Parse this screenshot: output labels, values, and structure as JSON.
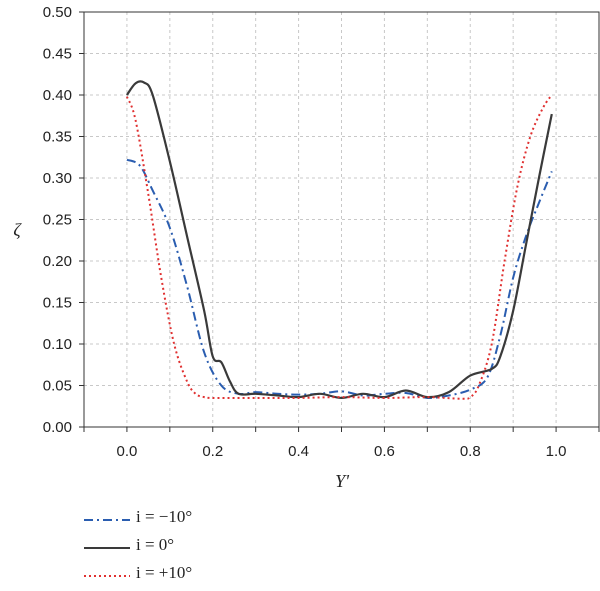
{
  "chart_data": {
    "type": "line",
    "xlabel": "Y'",
    "ylabel": "ζ",
    "xlim": [
      -0.1,
      1.1
    ],
    "ylim": [
      0.0,
      0.5
    ],
    "xticks": [
      "0.0",
      "0.2",
      "0.4",
      "0.6",
      "0.8",
      "1.0"
    ],
    "yticks": [
      "0.00",
      "0.05",
      "0.10",
      "0.15",
      "0.20",
      "0.25",
      "0.30",
      "0.35",
      "0.40",
      "0.45",
      "0.50"
    ],
    "grid": true,
    "legend_position": "bottom-left, below plot",
    "series": [
      {
        "name": "i = −10°",
        "color": "#2a5db0",
        "dash": "dashdot",
        "x": [
          0.0,
          0.03,
          0.06,
          0.1,
          0.14,
          0.18,
          0.22,
          0.26,
          0.3,
          0.35,
          0.4,
          0.45,
          0.5,
          0.55,
          0.6,
          0.65,
          0.7,
          0.75,
          0.8,
          0.84,
          0.87,
          0.9,
          0.93,
          0.96,
          0.99
        ],
        "y": [
          0.322,
          0.315,
          0.285,
          0.24,
          0.17,
          0.09,
          0.05,
          0.04,
          0.042,
          0.04,
          0.039,
          0.04,
          0.043,
          0.038,
          0.04,
          0.041,
          0.035,
          0.038,
          0.045,
          0.06,
          0.11,
          0.18,
          0.23,
          0.27,
          0.308
        ]
      },
      {
        "name": "i = 0°",
        "color": "#3a3a3a",
        "dash": "solid",
        "x": [
          0.0,
          0.02,
          0.04,
          0.06,
          0.1,
          0.14,
          0.18,
          0.2,
          0.22,
          0.24,
          0.26,
          0.3,
          0.35,
          0.4,
          0.45,
          0.5,
          0.55,
          0.6,
          0.65,
          0.7,
          0.75,
          0.8,
          0.85,
          0.87,
          0.9,
          0.93,
          0.96,
          0.99
        ],
        "y": [
          0.4,
          0.414,
          0.415,
          0.4,
          0.32,
          0.23,
          0.14,
          0.085,
          0.078,
          0.055,
          0.04,
          0.04,
          0.038,
          0.036,
          0.04,
          0.035,
          0.04,
          0.036,
          0.044,
          0.036,
          0.042,
          0.062,
          0.07,
          0.085,
          0.14,
          0.22,
          0.3,
          0.377
        ]
      },
      {
        "name": "i = +10°",
        "color": "#e03030",
        "dash": "dotted",
        "x": [
          0.0,
          0.02,
          0.05,
          0.08,
          0.11,
          0.14,
          0.16,
          0.18,
          0.2,
          0.3,
          0.4,
          0.5,
          0.6,
          0.7,
          0.78,
          0.8,
          0.82,
          0.85,
          0.88,
          0.91,
          0.94,
          0.97,
          0.99
        ],
        "y": [
          0.398,
          0.37,
          0.28,
          0.18,
          0.1,
          0.055,
          0.04,
          0.036,
          0.035,
          0.035,
          0.035,
          0.036,
          0.035,
          0.036,
          0.034,
          0.036,
          0.05,
          0.1,
          0.2,
          0.29,
          0.35,
          0.385,
          0.4
        ]
      }
    ]
  }
}
